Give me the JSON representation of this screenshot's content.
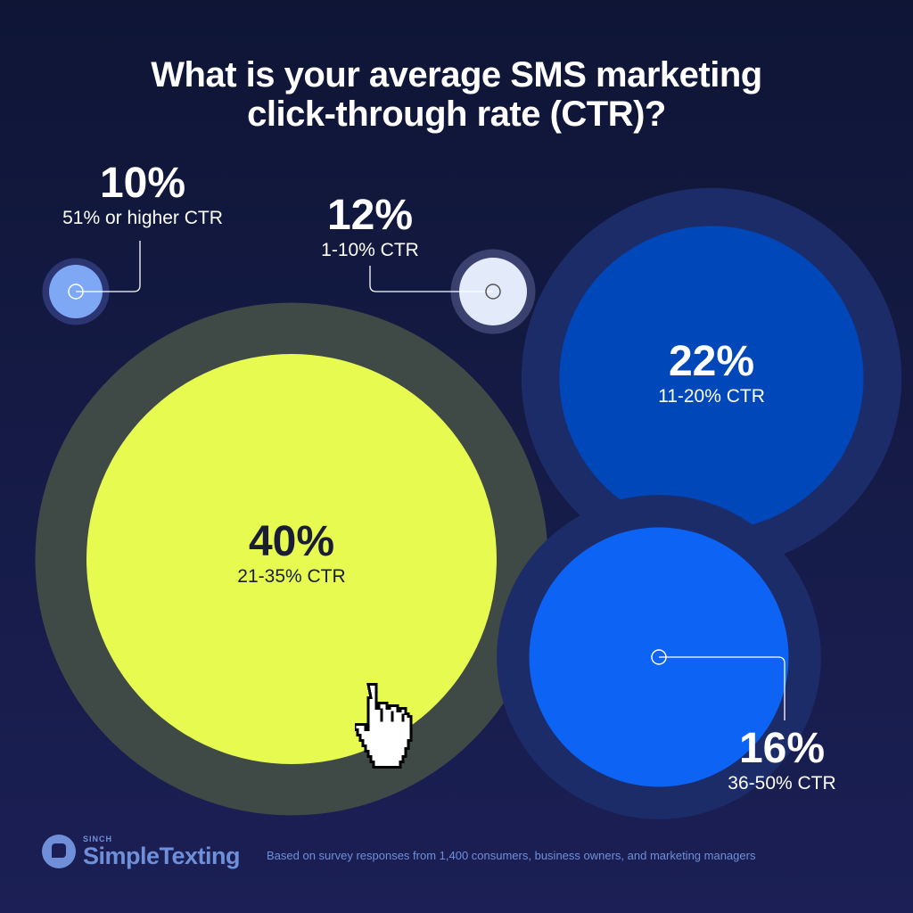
{
  "chart_data": {
    "type": "bubble",
    "title": "What is your average SMS marketing click-through rate (CTR)?",
    "title_lines": [
      "What is your average SMS marketing",
      "click-through rate (CTR)?"
    ],
    "unit": "%",
    "categories": [
      "51% or higher CTR",
      "1-10% CTR",
      "11-20% CTR",
      "21-35% CTR",
      "36-50% CTR"
    ],
    "values": [
      10,
      12,
      22,
      40,
      16
    ],
    "value_labels": [
      "10%",
      "12%",
      "22%",
      "40%",
      "16%"
    ],
    "colors": [
      "#7ea8f4",
      "#e3ebfa",
      "#0047b9",
      "#e6fa50",
      "#0c63f4"
    ],
    "ring_colors": [
      "#2b3672",
      "#3b416f",
      "#1b2c69",
      "#3f4946",
      "#1c2c69"
    ]
  },
  "footer": {
    "brand_prefix": "SINCH",
    "brand_name": "SimpleTexting",
    "note": "Based on survey responses from 1,400 consumers, business owners, and marketing managers"
  },
  "colors": {
    "brand": "#6f8fd8",
    "background": "#141a44"
  }
}
